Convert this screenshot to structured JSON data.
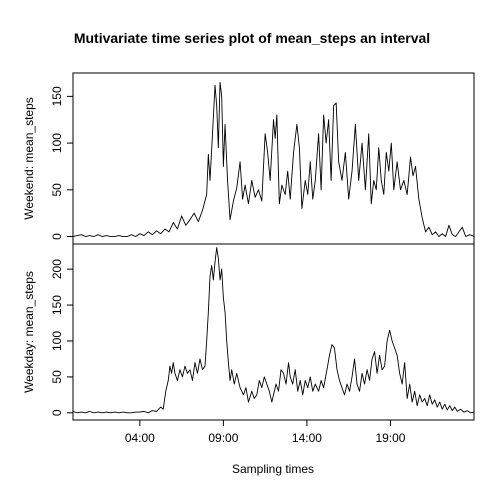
{
  "chart_data": {
    "type": "line",
    "title": "Mutivariate time series plot of mean_steps an interval",
    "xlabel": "Sampling times",
    "x_unit": "hours of day",
    "xlim": [
      0,
      24
    ],
    "x_ticks": [
      {
        "value": 4,
        "label": "04:00"
      },
      {
        "value": 9,
        "label": "09:00"
      },
      {
        "value": 14,
        "label": "14:00"
      },
      {
        "value": 19,
        "label": "19:00"
      }
    ],
    "panels": [
      {
        "name": "weekend",
        "ylabel": "Weekend: mean_steps",
        "ylim": [
          -8,
          175
        ],
        "y_ticks": [
          0,
          50,
          100,
          150
        ],
        "points": [
          [
            0,
            0
          ],
          [
            0.25,
            1
          ],
          [
            0.5,
            2
          ],
          [
            0.75,
            0
          ],
          [
            1,
            1
          ],
          [
            1.25,
            0
          ],
          [
            1.5,
            2
          ],
          [
            1.75,
            0
          ],
          [
            2,
            1
          ],
          [
            2.25,
            0
          ],
          [
            2.5,
            0
          ],
          [
            2.75,
            1
          ],
          [
            3,
            0
          ],
          [
            3.25,
            0
          ],
          [
            3.5,
            2
          ],
          [
            3.75,
            0
          ],
          [
            4,
            3
          ],
          [
            4.25,
            1
          ],
          [
            4.5,
            5
          ],
          [
            4.75,
            2
          ],
          [
            5,
            6
          ],
          [
            5.25,
            3
          ],
          [
            5.5,
            8
          ],
          [
            5.75,
            5
          ],
          [
            6,
            15
          ],
          [
            6.25,
            8
          ],
          [
            6.5,
            22
          ],
          [
            6.75,
            12
          ],
          [
            7,
            18
          ],
          [
            7.25,
            25
          ],
          [
            7.5,
            16
          ],
          [
            7.75,
            28
          ],
          [
            8,
            45
          ],
          [
            8.1,
            88
          ],
          [
            8.2,
            60
          ],
          [
            8.35,
            110
          ],
          [
            8.5,
            162
          ],
          [
            8.6,
            140
          ],
          [
            8.7,
            95
          ],
          [
            8.8,
            165
          ],
          [
            8.9,
            150
          ],
          [
            9,
            75
          ],
          [
            9.1,
            120
          ],
          [
            9.25,
            60
          ],
          [
            9.4,
            18
          ],
          [
            9.6,
            38
          ],
          [
            9.8,
            52
          ],
          [
            10,
            80
          ],
          [
            10.15,
            40
          ],
          [
            10.3,
            55
          ],
          [
            10.5,
            35
          ],
          [
            10.7,
            60
          ],
          [
            10.9,
            42
          ],
          [
            11.1,
            50
          ],
          [
            11.3,
            38
          ],
          [
            11.5,
            110
          ],
          [
            11.65,
            90
          ],
          [
            11.8,
            60
          ],
          [
            12,
            125
          ],
          [
            12.1,
            105
          ],
          [
            12.2,
            130
          ],
          [
            12.35,
            35
          ],
          [
            12.5,
            55
          ],
          [
            12.7,
            45
          ],
          [
            12.85,
            70
          ],
          [
            13,
            40
          ],
          [
            13.2,
            90
          ],
          [
            13.4,
            120
          ],
          [
            13.55,
            95
          ],
          [
            13.7,
            30
          ],
          [
            13.9,
            60
          ],
          [
            14.05,
            45
          ],
          [
            14.2,
            80
          ],
          [
            14.35,
            40
          ],
          [
            14.5,
            60
          ],
          [
            14.7,
            110
          ],
          [
            14.85,
            50
          ],
          [
            15,
            130
          ],
          [
            15.15,
            100
          ],
          [
            15.3,
            125
          ],
          [
            15.45,
            60
          ],
          [
            15.6,
            140
          ],
          [
            15.75,
            143
          ],
          [
            15.9,
            80
          ],
          [
            16.1,
            60
          ],
          [
            16.3,
            90
          ],
          [
            16.5,
            40
          ],
          [
            16.7,
            70
          ],
          [
            16.9,
            120
          ],
          [
            17.1,
            60
          ],
          [
            17.3,
            100
          ],
          [
            17.5,
            50
          ],
          [
            17.7,
            110
          ],
          [
            17.85,
            35
          ],
          [
            18,
            60
          ],
          [
            18.15,
            50
          ],
          [
            18.3,
            95
          ],
          [
            18.45,
            60
          ],
          [
            18.6,
            45
          ],
          [
            18.75,
            90
          ],
          [
            18.9,
            70
          ],
          [
            19.05,
            100
          ],
          [
            19.2,
            50
          ],
          [
            19.4,
            80
          ],
          [
            19.6,
            50
          ],
          [
            19.8,
            60
          ],
          [
            20,
            45
          ],
          [
            20.2,
            85
          ],
          [
            20.35,
            65
          ],
          [
            20.5,
            75
          ],
          [
            20.7,
            40
          ],
          [
            20.9,
            20
          ],
          [
            21.1,
            5
          ],
          [
            21.3,
            10
          ],
          [
            21.5,
            2
          ],
          [
            21.7,
            5
          ],
          [
            21.9,
            0
          ],
          [
            22.1,
            3
          ],
          [
            22.3,
            0
          ],
          [
            22.5,
            12
          ],
          [
            22.7,
            2
          ],
          [
            22.9,
            0
          ],
          [
            23.1,
            5
          ],
          [
            23.3,
            10
          ],
          [
            23.5,
            0
          ],
          [
            23.75,
            2
          ],
          [
            24,
            0
          ]
        ]
      },
      {
        "name": "weekday",
        "ylabel": "Weekday: mean_steps",
        "ylim": [
          -10,
          235
        ],
        "y_ticks": [
          0,
          50,
          100,
          150,
          200
        ],
        "points": [
          [
            0,
            2
          ],
          [
            0.25,
            0
          ],
          [
            0.5,
            1
          ],
          [
            0.75,
            0
          ],
          [
            1,
            2
          ],
          [
            1.25,
            0
          ],
          [
            1.5,
            1
          ],
          [
            1.75,
            0
          ],
          [
            2,
            1
          ],
          [
            2.25,
            0
          ],
          [
            2.5,
            1
          ],
          [
            2.75,
            0
          ],
          [
            3,
            1
          ],
          [
            3.25,
            0
          ],
          [
            3.5,
            0
          ],
          [
            3.75,
            1
          ],
          [
            4,
            1
          ],
          [
            4.25,
            2
          ],
          [
            4.5,
            0
          ],
          [
            4.75,
            3
          ],
          [
            5,
            2
          ],
          [
            5.25,
            8
          ],
          [
            5.4,
            5
          ],
          [
            5.55,
            30
          ],
          [
            5.7,
            45
          ],
          [
            5.8,
            65
          ],
          [
            5.9,
            55
          ],
          [
            6,
            70
          ],
          [
            6.1,
            55
          ],
          [
            6.25,
            45
          ],
          [
            6.4,
            60
          ],
          [
            6.55,
            50
          ],
          [
            6.7,
            65
          ],
          [
            6.85,
            55
          ],
          [
            7,
            60
          ],
          [
            7.15,
            45
          ],
          [
            7.3,
            70
          ],
          [
            7.45,
            55
          ],
          [
            7.6,
            75
          ],
          [
            7.75,
            60
          ],
          [
            7.9,
            65
          ],
          [
            8,
            100
          ],
          [
            8.1,
            140
          ],
          [
            8.2,
            190
          ],
          [
            8.3,
            205
          ],
          [
            8.4,
            185
          ],
          [
            8.5,
            210
          ],
          [
            8.6,
            230
          ],
          [
            8.7,
            215
          ],
          [
            8.8,
            185
          ],
          [
            8.9,
            200
          ],
          [
            9,
            160
          ],
          [
            9.1,
            140
          ],
          [
            9.2,
            100
          ],
          [
            9.3,
            70
          ],
          [
            9.4,
            45
          ],
          [
            9.5,
            60
          ],
          [
            9.65,
            40
          ],
          [
            9.8,
            55
          ],
          [
            10,
            35
          ],
          [
            10.2,
            25
          ],
          [
            10.35,
            35
          ],
          [
            10.5,
            15
          ],
          [
            10.7,
            30
          ],
          [
            10.85,
            20
          ],
          [
            11,
            25
          ],
          [
            11.15,
            45
          ],
          [
            11.3,
            35
          ],
          [
            11.45,
            50
          ],
          [
            11.6,
            40
          ],
          [
            11.75,
            30
          ],
          [
            11.9,
            15
          ],
          [
            12,
            25
          ],
          [
            12.15,
            40
          ],
          [
            12.3,
            30
          ],
          [
            12.45,
            60
          ],
          [
            12.6,
            55
          ],
          [
            12.75,
            40
          ],
          [
            12.9,
            70
          ],
          [
            13,
            50
          ],
          [
            13.15,
            40
          ],
          [
            13.3,
            60
          ],
          [
            13.45,
            30
          ],
          [
            13.6,
            45
          ],
          [
            13.75,
            25
          ],
          [
            13.9,
            45
          ],
          [
            14.05,
            35
          ],
          [
            14.2,
            50
          ],
          [
            14.35,
            30
          ],
          [
            14.5,
            40
          ],
          [
            14.7,
            30
          ],
          [
            14.85,
            45
          ],
          [
            15,
            35
          ],
          [
            15.2,
            60
          ],
          [
            15.35,
            80
          ],
          [
            15.5,
            95
          ],
          [
            15.65,
            90
          ],
          [
            15.8,
            60
          ],
          [
            15.95,
            45
          ],
          [
            16.1,
            35
          ],
          [
            16.25,
            25
          ],
          [
            16.4,
            40
          ],
          [
            16.55,
            30
          ],
          [
            16.7,
            50
          ],
          [
            16.85,
            75
          ],
          [
            17,
            40
          ],
          [
            17.15,
            30
          ],
          [
            17.3,
            55
          ],
          [
            17.45,
            40
          ],
          [
            17.6,
            60
          ],
          [
            17.75,
            45
          ],
          [
            17.9,
            75
          ],
          [
            18.05,
            85
          ],
          [
            18.2,
            55
          ],
          [
            18.35,
            80
          ],
          [
            18.5,
            60
          ],
          [
            18.65,
            65
          ],
          [
            18.8,
            100
          ],
          [
            18.95,
            115
          ],
          [
            19.1,
            100
          ],
          [
            19.25,
            90
          ],
          [
            19.4,
            80
          ],
          [
            19.55,
            55
          ],
          [
            19.7,
            40
          ],
          [
            19.85,
            70
          ],
          [
            20,
            20
          ],
          [
            20.15,
            40
          ],
          [
            20.3,
            15
          ],
          [
            20.45,
            30
          ],
          [
            20.6,
            10
          ],
          [
            20.75,
            25
          ],
          [
            20.9,
            15
          ],
          [
            21.05,
            20
          ],
          [
            21.2,
            10
          ],
          [
            21.35,
            25
          ],
          [
            21.5,
            12
          ],
          [
            21.65,
            18
          ],
          [
            21.8,
            8
          ],
          [
            21.95,
            15
          ],
          [
            22.1,
            5
          ],
          [
            22.25,
            12
          ],
          [
            22.4,
            4
          ],
          [
            22.55,
            10
          ],
          [
            22.7,
            3
          ],
          [
            22.85,
            8
          ],
          [
            23,
            2
          ],
          [
            23.2,
            5
          ],
          [
            23.4,
            1
          ],
          [
            23.6,
            3
          ],
          [
            23.8,
            0
          ],
          [
            24,
            1
          ]
        ]
      }
    ]
  }
}
